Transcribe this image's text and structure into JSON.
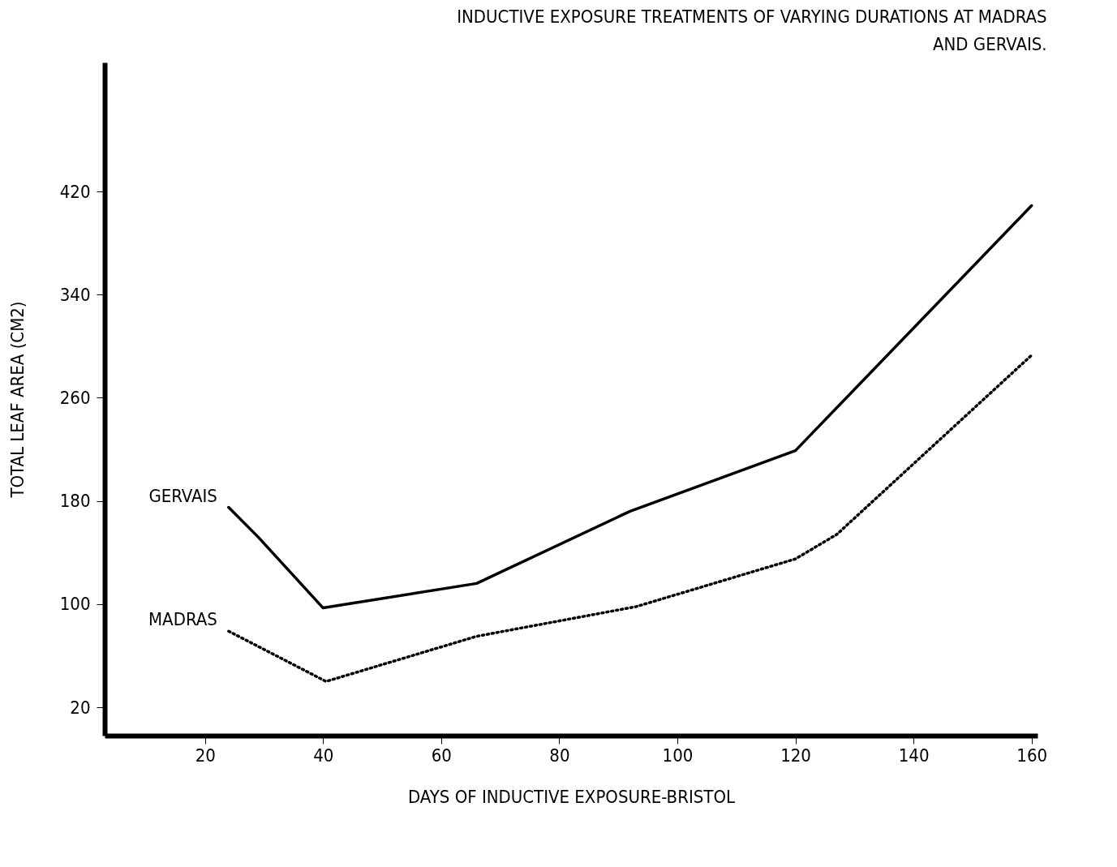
{
  "chart_data": {
    "type": "line",
    "title": "INDUCTIVE EXPOSURE TREATMENTS OF VARYING DURATIONS AT MADRAS AND GERVAIS.",
    "xlabel": "DAYS OF INDUCTIVE EXPOSURE-BRISTOL",
    "ylabel": "TOTAL LEAF AREA (CM2)",
    "xlim": [
      3,
      161
    ],
    "xticks": [
      20,
      40,
      60,
      80,
      100,
      120,
      140,
      160
    ],
    "ylim": [
      -2,
      520
    ],
    "yticks": [
      20,
      100,
      180,
      260,
      340,
      420
    ],
    "grid": false,
    "marker": "none",
    "series": [
      {
        "name": "GERVAIS",
        "color": "#000000",
        "line_style": "solid",
        "x": [
          24,
          29,
          40,
          66,
          92,
          120,
          124,
          160
        ],
        "values": [
          175,
          152,
          97,
          116,
          172,
          219,
          238,
          409
        ]
      },
      {
        "name": "MADRAS",
        "color": "#000000",
        "line_style": "dotted",
        "x": [
          24,
          40.5,
          66,
          93,
          120,
          127,
          160
        ],
        "values": [
          79,
          40,
          75,
          98,
          135,
          154,
          293
        ]
      }
    ]
  }
}
